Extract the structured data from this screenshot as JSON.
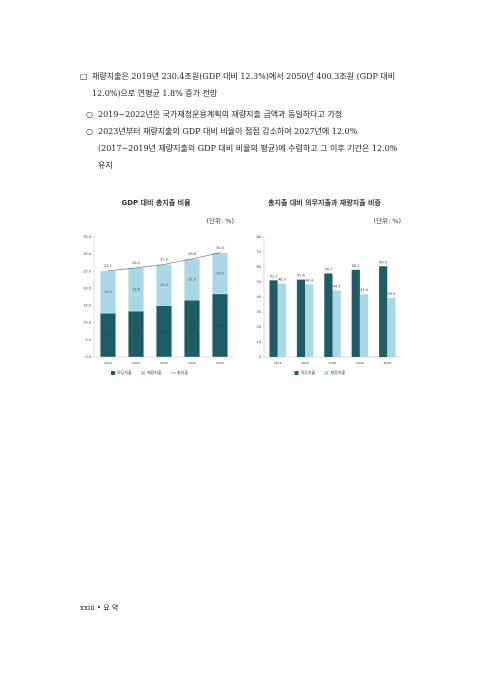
{
  "body": {
    "main": "재량지출은 2019년 230.4조원(GDP 대비 12.3%)에서 2050년 400.3조원 (GDP 대비 12.0%)으로 연평균 1.8% 증가 전망",
    "bullets": [
      "2019~2022년은 국가재정운용계획의 재량지출 금액과 동일하다고 가정",
      "2023년부터 재량지출의 GDP 대비 비율이 점점 감소하여 2027년에 12.0% (2017~2019년 재량지출의 GDP 대비 비율의 평균)에 수렴하고 그 이후 기간은 12.0% 유지"
    ]
  },
  "chart_data": [
    {
      "type": "stacked_bar",
      "title": "GDP 대비 총지출 비율",
      "unit": "(단위: %)",
      "categories": [
        "2019",
        "2025",
        "2030",
        "2040",
        "2050"
      ],
      "series": [
        {
          "name": "의무지출",
          "color": "#1f5c66",
          "values": [
            12.8,
            13.4,
            15.0,
            16.6,
            18.4
          ],
          "value_labels": [
            "12.8",
            "13.4",
            "15.0",
            "16.6",
            "18.4"
          ]
        },
        {
          "name": "재량지출",
          "color": "#a9d8e4",
          "values": [
            12.3,
            12.6,
            12.0,
            12.0,
            12.0
          ],
          "value_labels": [
            "12.3",
            "12.6",
            "12.0",
            "12.0",
            "12.0"
          ]
        },
        {
          "name": "총지출",
          "color": "#777777",
          "type": "line",
          "values": [
            25.1,
            26.0,
            27.0,
            28.6,
            30.4
          ],
          "value_labels": [
            "25.1",
            "26.0",
            "27.0",
            "28.6",
            "30.4"
          ]
        }
      ],
      "ylim": [
        0,
        35
      ],
      "yticks": [
        {
          "value": 0,
          "label": "0.0"
        },
        {
          "value": 5,
          "label": "5.0"
        },
        {
          "value": 10,
          "label": "10.0"
        },
        {
          "value": 15,
          "label": "15.0"
        },
        {
          "value": 20,
          "label": "20.0"
        },
        {
          "value": 25,
          "label": "25.0"
        },
        {
          "value": 30,
          "label": "30.0"
        },
        {
          "value": 35,
          "label": "35.0"
        }
      ]
    },
    {
      "type": "bar",
      "title": "총지출 대비 의무지출과 재량지출 비중",
      "unit": "(단위: %)",
      "categories": [
        "2019",
        "2025",
        "2030",
        "2040",
        "2050"
      ],
      "series": [
        {
          "name": "의무지출",
          "color": "#1f5c66",
          "values": [
            51.1,
            51.6,
            55.7,
            58.1,
            60.5
          ]
        },
        {
          "name": "재량지출",
          "color": "#a9d8e4",
          "values": [
            48.9,
            48.4,
            44.3,
            41.9,
            39.5
          ]
        }
      ],
      "ylim": [
        0,
        80
      ],
      "yticks": [
        0,
        10,
        20,
        30,
        40,
        50,
        60,
        70,
        80
      ]
    }
  ],
  "footer": "xxiii • 요 약"
}
